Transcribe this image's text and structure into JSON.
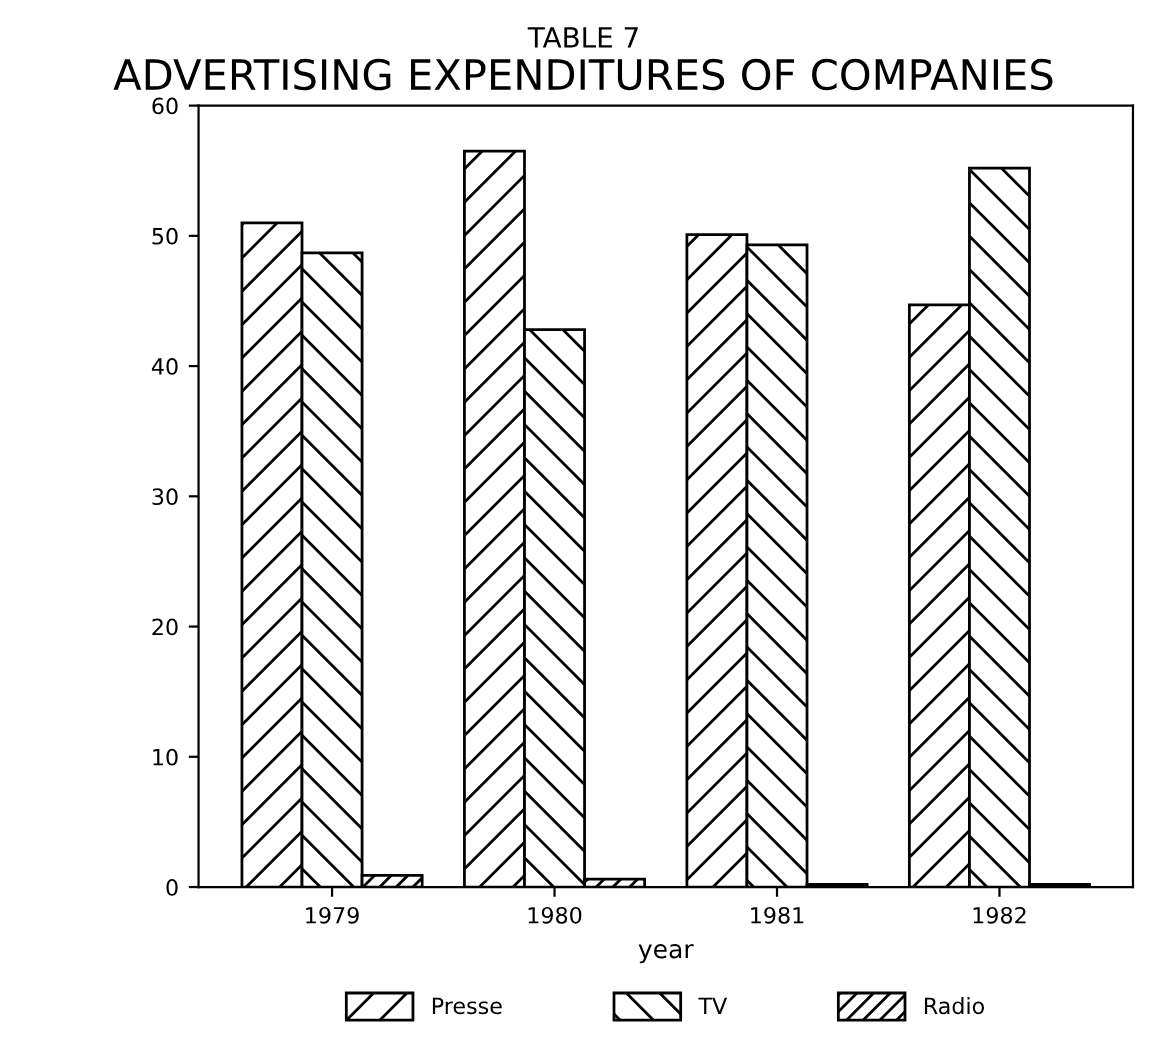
{
  "chart_data": {
    "type": "bar",
    "title": "ADVERTISING EXPENDITURES OF COMPANIES",
    "subtitle": "TABLE 7",
    "xlabel": "year",
    "categories": [
      "1979",
      "1980",
      "1981",
      "1982"
    ],
    "series": [
      {
        "name": "Presse",
        "color": "#000000",
        "values": [
          51.0,
          56.5,
          50.1,
          44.7
        ]
      },
      {
        "name": "TV",
        "color": "#000000",
        "values": [
          48.7,
          42.8,
          49.3,
          55.2
        ]
      },
      {
        "name": "Radio",
        "color": "#000000",
        "values": [
          0.9,
          0.6,
          0.2,
          0.2
        ]
      }
    ],
    "ylim": [
      0,
      60
    ],
    "yticks": [
      0,
      10,
      20,
      30,
      40,
      50,
      60
    ],
    "grid": false,
    "legend": "bottom"
  }
}
